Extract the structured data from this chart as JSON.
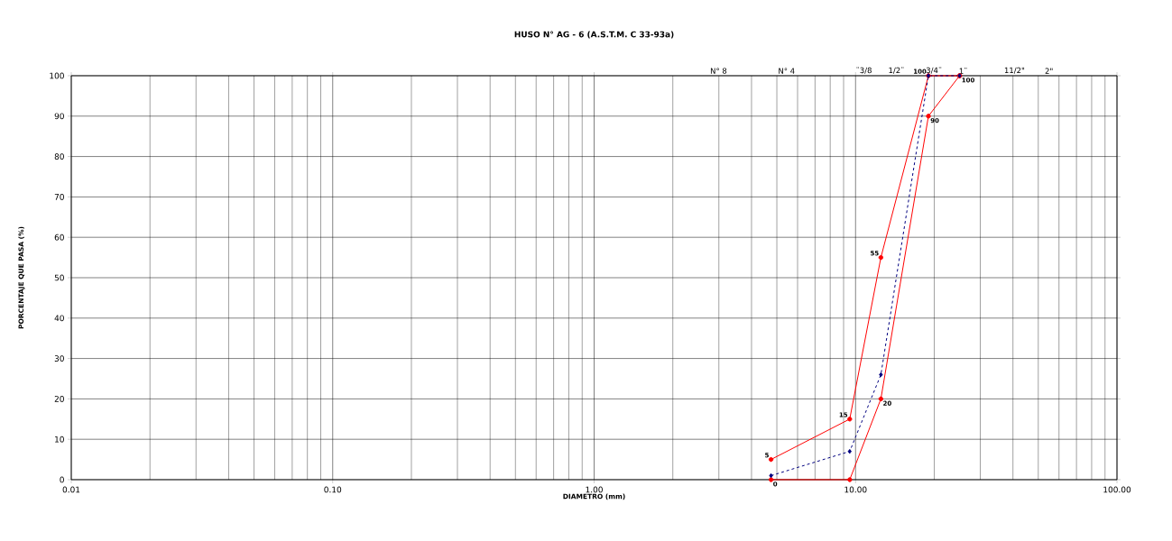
{
  "chart_data": {
    "type": "line",
    "title": "HUSO N° AG - 6    (A.S.T.M. C 33-93a)",
    "xlabel": "DIAMETRO (mm)",
    "ylabel": "PORCENTAJE QUE PASA (%)",
    "log": "x",
    "grid": true,
    "xlim": [
      0.01,
      100
    ],
    "xticks": [
      0.01,
      {
        "value": 0.1,
        "label": "0.10"
      },
      {
        "value": 1,
        "label": "1.00"
      },
      {
        "value": 10,
        "label": "10.00"
      },
      {
        "value": 100,
        "label": "100.00"
      }
    ],
    "ylim": [
      0,
      100
    ],
    "yticks": [
      0,
      10,
      20,
      30,
      40,
      50,
      60,
      70,
      80,
      90,
      100
    ],
    "series": [
      {
        "color": "#ff0000",
        "marker": "circle",
        "line_style": "solid",
        "x": [
          4.75,
          9.5,
          12.5,
          19,
          25
        ],
        "values": [
          5,
          15,
          55,
          100,
          100
        ],
        "value_labels": [
          "5",
          "15",
          "55",
          "100",
          null
        ]
      },
      {
        "color": "#ff0000",
        "marker": "circle",
        "line_style": "solid",
        "x": [
          4.75,
          9.5,
          12.5,
          19,
          25
        ],
        "values": [
          0,
          0,
          20,
          90,
          100
        ],
        "value_labels": [
          "0",
          null,
          "20",
          "90",
          "100"
        ]
      },
      {
        "color": "#000080",
        "marker": "diamond",
        "line_style": "dashed",
        "x": [
          4.75,
          9.5,
          12.5,
          19,
          25
        ],
        "values": [
          1,
          7,
          26,
          100,
          100
        ]
      }
    ],
    "annotations": [
      "N° 8",
      "N° 4",
      "¨3/8",
      "1/2¨",
      "3/4¨",
      "1¨",
      "11/2\"",
      "2\""
    ]
  }
}
